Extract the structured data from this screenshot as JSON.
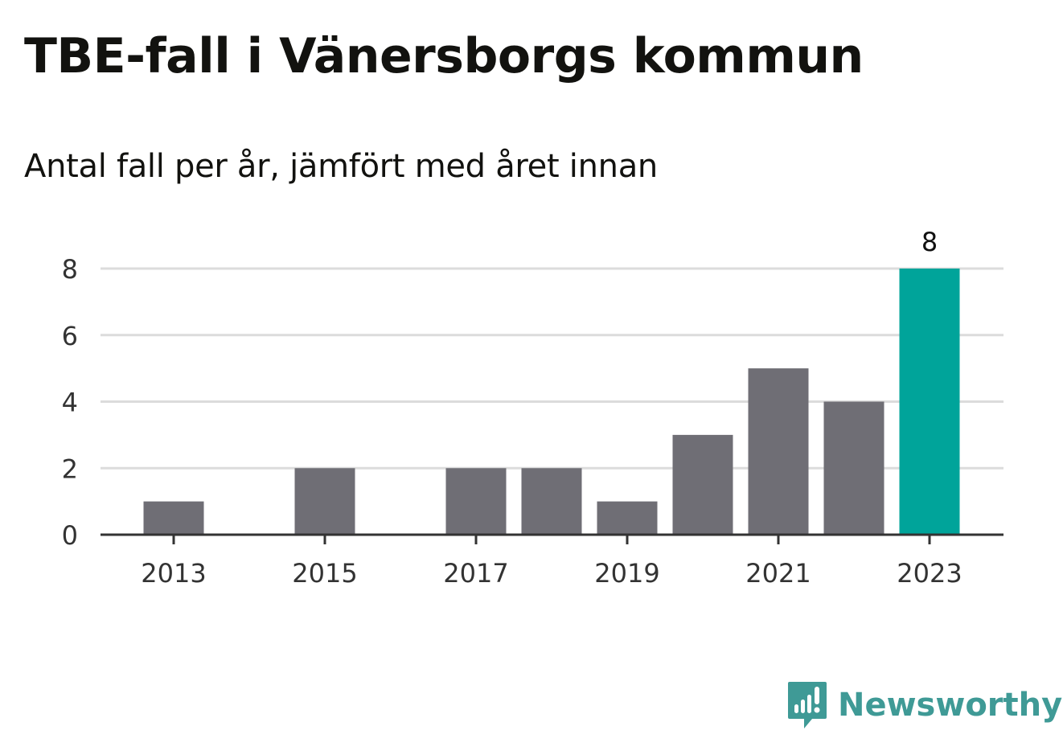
{
  "title": "TBE-fall i Vänersborgs kommun",
  "subtitle": "Antal fall per år, jämfört med året innan",
  "brand": {
    "name": "Newsworthy",
    "color": "#3f9a96",
    "icon": "newsworthy-logo-icon"
  },
  "colors": {
    "bar": "#6f6e75",
    "highlight": "#00a49a",
    "grid": "#dcdcdc",
    "axis": "#333333"
  },
  "chart_data": {
    "type": "bar",
    "title": "TBE-fall i Vänersborgs kommun",
    "subtitle": "Antal fall per år, jämfört med året innan",
    "categories": [
      2013,
      2014,
      2015,
      2016,
      2017,
      2018,
      2019,
      2020,
      2021,
      2022,
      2023
    ],
    "values": [
      1,
      0,
      2,
      0,
      2,
      2,
      1,
      3,
      5,
      4,
      8
    ],
    "highlight_index": 10,
    "data_labels": [
      {
        "category": 2023,
        "label": "8"
      }
    ],
    "x_tick_labels": [
      "2013",
      "2015",
      "2017",
      "2019",
      "2021",
      "2023"
    ],
    "y_ticks": [
      0,
      2,
      4,
      6,
      8
    ],
    "ylim": [
      0,
      8
    ],
    "xlabel": "",
    "ylabel": "",
    "grid": true,
    "legend": "none"
  }
}
